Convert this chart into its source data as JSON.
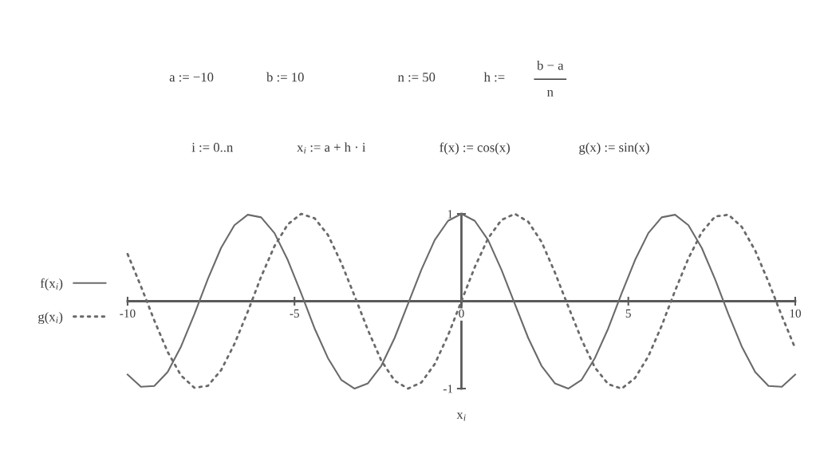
{
  "chart_data": {
    "type": "line",
    "xlabel": "x$_{i}$",
    "x": [
      -10,
      -9.6,
      -9.2,
      -8.8,
      -8.4,
      -8,
      -7.6,
      -7.2,
      -6.8,
      -6.4,
      -6,
      -5.6,
      -5.2,
      -4.8,
      -4.4,
      -4,
      -3.6,
      -3.2,
      -2.8,
      -2.4,
      -2,
      -1.6,
      -1.2,
      -0.8,
      -0.4,
      0,
      0.4,
      0.8,
      1.2,
      1.6,
      2,
      2.4,
      2.8,
      3.2,
      3.6,
      4,
      4.4,
      4.8,
      5.2,
      5.6,
      6,
      6.4,
      6.8,
      7.2,
      7.6,
      8,
      8.4,
      8.8,
      9.2,
      9.6,
      10
    ],
    "series": [
      {
        "name": "f(x$_{i}$)",
        "color": "#6a6a6a",
        "line_style": "solid",
        "values": [
          -0.84,
          -0.98,
          -0.97,
          -0.81,
          -0.52,
          -0.15,
          0.25,
          0.61,
          0.87,
          0.99,
          0.96,
          0.78,
          0.47,
          0.09,
          -0.31,
          -0.65,
          -0.9,
          -1,
          -0.94,
          -0.74,
          -0.42,
          -0.03,
          0.36,
          0.7,
          0.92,
          1,
          0.92,
          0.7,
          0.36,
          -0.03,
          -0.42,
          -0.74,
          -0.94,
          -1,
          -0.9,
          -0.65,
          -0.31,
          0.09,
          0.47,
          0.78,
          0.96,
          0.99,
          0.87,
          0.61,
          0.25,
          -0.15,
          -0.52,
          -0.81,
          -0.97,
          -0.98,
          -0.84
        ]
      },
      {
        "name": "g(x$_{i}$)",
        "color": "#6a6a6a",
        "line_style": "dotted",
        "values": [
          0.54,
          0.17,
          -0.22,
          -0.58,
          -0.85,
          -0.99,
          -0.97,
          -0.79,
          -0.49,
          -0.12,
          0.28,
          0.63,
          0.88,
          1,
          0.95,
          0.76,
          0.44,
          0.06,
          -0.33,
          -0.68,
          -0.91,
          -1,
          -0.93,
          -0.72,
          -0.39,
          0,
          0.39,
          0.72,
          0.93,
          1,
          0.91,
          0.68,
          0.33,
          -0.06,
          -0.44,
          -0.76,
          -0.95,
          -1,
          -0.88,
          -0.63,
          -0.28,
          0.12,
          0.49,
          0.79,
          0.97,
          0.99,
          0.85,
          0.58,
          0.22,
          -0.17,
          -0.54
        ]
      }
    ],
    "xlim": [
      -10,
      10
    ],
    "xticks": [
      -10,
      -5,
      0,
      5,
      10
    ],
    "ylim": [
      -1,
      1
    ],
    "yticks": [
      -1,
      1
    ],
    "legend": "left",
    "annotations": [
      "a := −10",
      "b := 10",
      "n := 50",
      "h :=",
      "b − a",
      "n",
      "i := 0..n",
      "x$_{i}$ := a + h · i",
      "f(x) := cos(x)",
      "g(x) := sin(x)"
    ]
  }
}
